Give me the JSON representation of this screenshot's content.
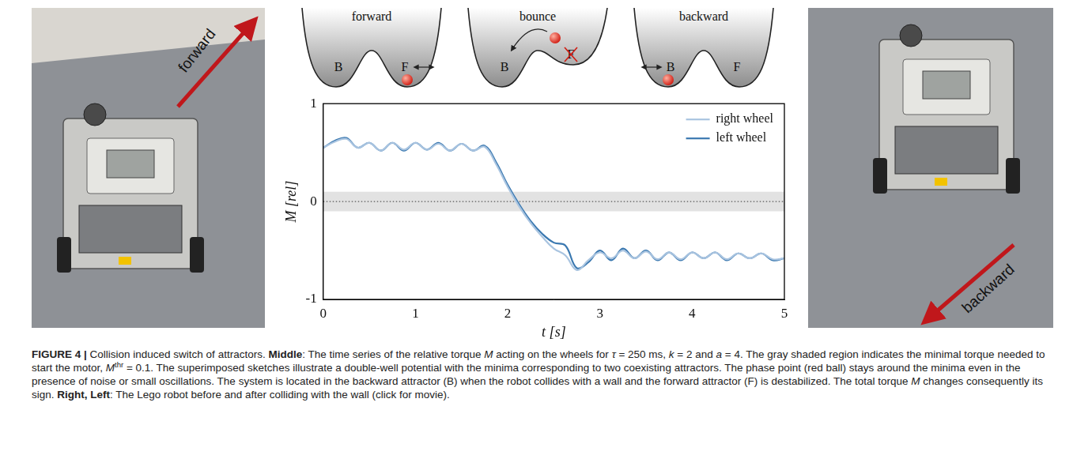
{
  "figure": {
    "left_photo": {
      "arrow_label": "forward"
    },
    "right_photo": {
      "arrow_label": "backward"
    },
    "sketches": [
      {
        "title": "forward",
        "labels": [
          "B",
          "F"
        ]
      },
      {
        "title": "bounce",
        "labels": [
          "B",
          "F"
        ]
      },
      {
        "title": "backward",
        "labels": [
          "B",
          "F"
        ]
      }
    ],
    "caption": [
      {
        "text": "FIGURE 4 | ",
        "style": "bold"
      },
      {
        "text": "Collision induced switch of attractors. ",
        "style": "normal"
      },
      {
        "text": "Middle",
        "style": "bold"
      },
      {
        "text": ": The time series of the relative torque ",
        "style": "normal"
      },
      {
        "text": "M",
        "style": "italic"
      },
      {
        "text": " acting on the wheels for ",
        "style": "normal"
      },
      {
        "text": "τ",
        "style": "italic"
      },
      {
        "text": " = 250 ms, ",
        "style": "normal"
      },
      {
        "text": "k",
        "style": "italic"
      },
      {
        "text": " = 2 and ",
        "style": "normal"
      },
      {
        "text": "a",
        "style": "italic"
      },
      {
        "text": " = 4. The gray shaded region indicates the minimal torque needed to start the motor, ",
        "style": "normal"
      },
      {
        "text": "M",
        "style": "italic"
      },
      {
        "text": "thr",
        "style": "sup"
      },
      {
        "text": " = 0.1. The superimposed sketches illustrate a double-well potential with the minima corresponding to two coexisting attractors. The phase point (red ball) stays around the minima even in the presence of noise or small oscillations. The system is located in the backward attractor (B) when the robot collides with a wall and the forward attractor (F) is destabilized. The total torque ",
        "style": "normal"
      },
      {
        "text": "M",
        "style": "italic"
      },
      {
        "text": " changes consequently its sign. ",
        "style": "normal"
      },
      {
        "text": "Right, Left",
        "style": "bold"
      },
      {
        "text": ": The Lego robot before and after colliding with the wall (click for movie).",
        "style": "normal"
      }
    ]
  },
  "chart_data": {
    "type": "line",
    "x_label": "t [s]",
    "y_label": "M [rel]",
    "x": [
      0,
      0.125,
      0.25,
      0.375,
      0.5,
      0.625,
      0.75,
      0.875,
      1.0,
      1.125,
      1.25,
      1.375,
      1.5,
      1.625,
      1.75,
      1.875,
      2.0,
      2.125,
      2.25,
      2.375,
      2.5,
      2.625,
      2.75,
      2.875,
      3.0,
      3.125,
      3.25,
      3.375,
      3.5,
      3.625,
      3.75,
      3.875,
      4.0,
      4.125,
      4.25,
      4.375,
      4.5,
      4.625,
      4.75,
      4.875,
      5.0
    ],
    "series": [
      {
        "name": "right wheel",
        "color": "#a9c4e0",
        "values": [
          0.55,
          0.61,
          0.64,
          0.55,
          0.6,
          0.52,
          0.6,
          0.53,
          0.6,
          0.53,
          0.59,
          0.52,
          0.59,
          0.52,
          0.56,
          0.38,
          0.15,
          -0.05,
          -0.22,
          -0.36,
          -0.48,
          -0.55,
          -0.7,
          -0.6,
          -0.52,
          -0.58,
          -0.5,
          -0.58,
          -0.51,
          -0.59,
          -0.52,
          -0.59,
          -0.52,
          -0.58,
          -0.52,
          -0.59,
          -0.53,
          -0.58,
          -0.53,
          -0.59,
          -0.58
        ]
      },
      {
        "name": "left wheel",
        "color": "#3a78b0",
        "values": [
          0.55,
          0.62,
          0.65,
          0.55,
          0.6,
          0.52,
          0.6,
          0.52,
          0.6,
          0.53,
          0.6,
          0.52,
          0.59,
          0.52,
          0.57,
          0.4,
          0.17,
          -0.03,
          -0.2,
          -0.33,
          -0.42,
          -0.45,
          -0.68,
          -0.62,
          -0.5,
          -0.6,
          -0.48,
          -0.58,
          -0.5,
          -0.6,
          -0.52,
          -0.6,
          -0.52,
          -0.58,
          -0.52,
          -0.6,
          -0.53,
          -0.58,
          -0.53,
          -0.6,
          -0.58
        ]
      }
    ],
    "xlim": [
      0,
      5
    ],
    "ylim": [
      -1,
      1
    ],
    "xticks": [
      0,
      1,
      2,
      3,
      4,
      5
    ],
    "yticks": [
      -1,
      0,
      1
    ],
    "threshold_band": [
      -0.1,
      0.1
    ],
    "reference_line": 0,
    "legend": "upper right",
    "grid": false
  }
}
